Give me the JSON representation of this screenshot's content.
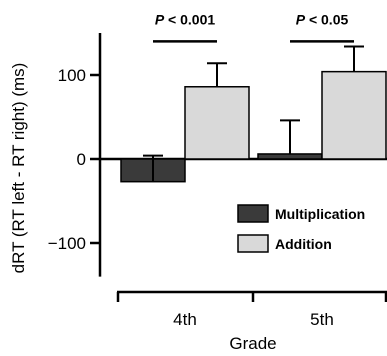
{
  "chart_data": {
    "type": "bar",
    "categories": [
      "4th",
      "5th"
    ],
    "series": [
      {
        "name": "Multiplication",
        "values": [
          -27,
          6
        ],
        "errors": [
          31,
          40
        ],
        "color": "#3a3a3a"
      },
      {
        "name": "Addition",
        "values": [
          86,
          104
        ],
        "errors": [
          28,
          30
        ],
        "color": "#d9d9d9"
      }
    ],
    "xlabel": "Grade",
    "ylabel": "dRT (RT left - RT right) (ms)",
    "ylim": [
      -140,
      150
    ],
    "yticks": [
      -100,
      0,
      100
    ],
    "ytick_labels": [
      "−100",
      "0",
      "100"
    ],
    "legend_position": "bottom-right",
    "annotations": [
      {
        "text": "P < 0.001",
        "category": "4th",
        "bracket_y": 140
      },
      {
        "text": "P < 0.05",
        "category": "5th",
        "bracket_y": 140
      }
    ],
    "grid": false
  }
}
